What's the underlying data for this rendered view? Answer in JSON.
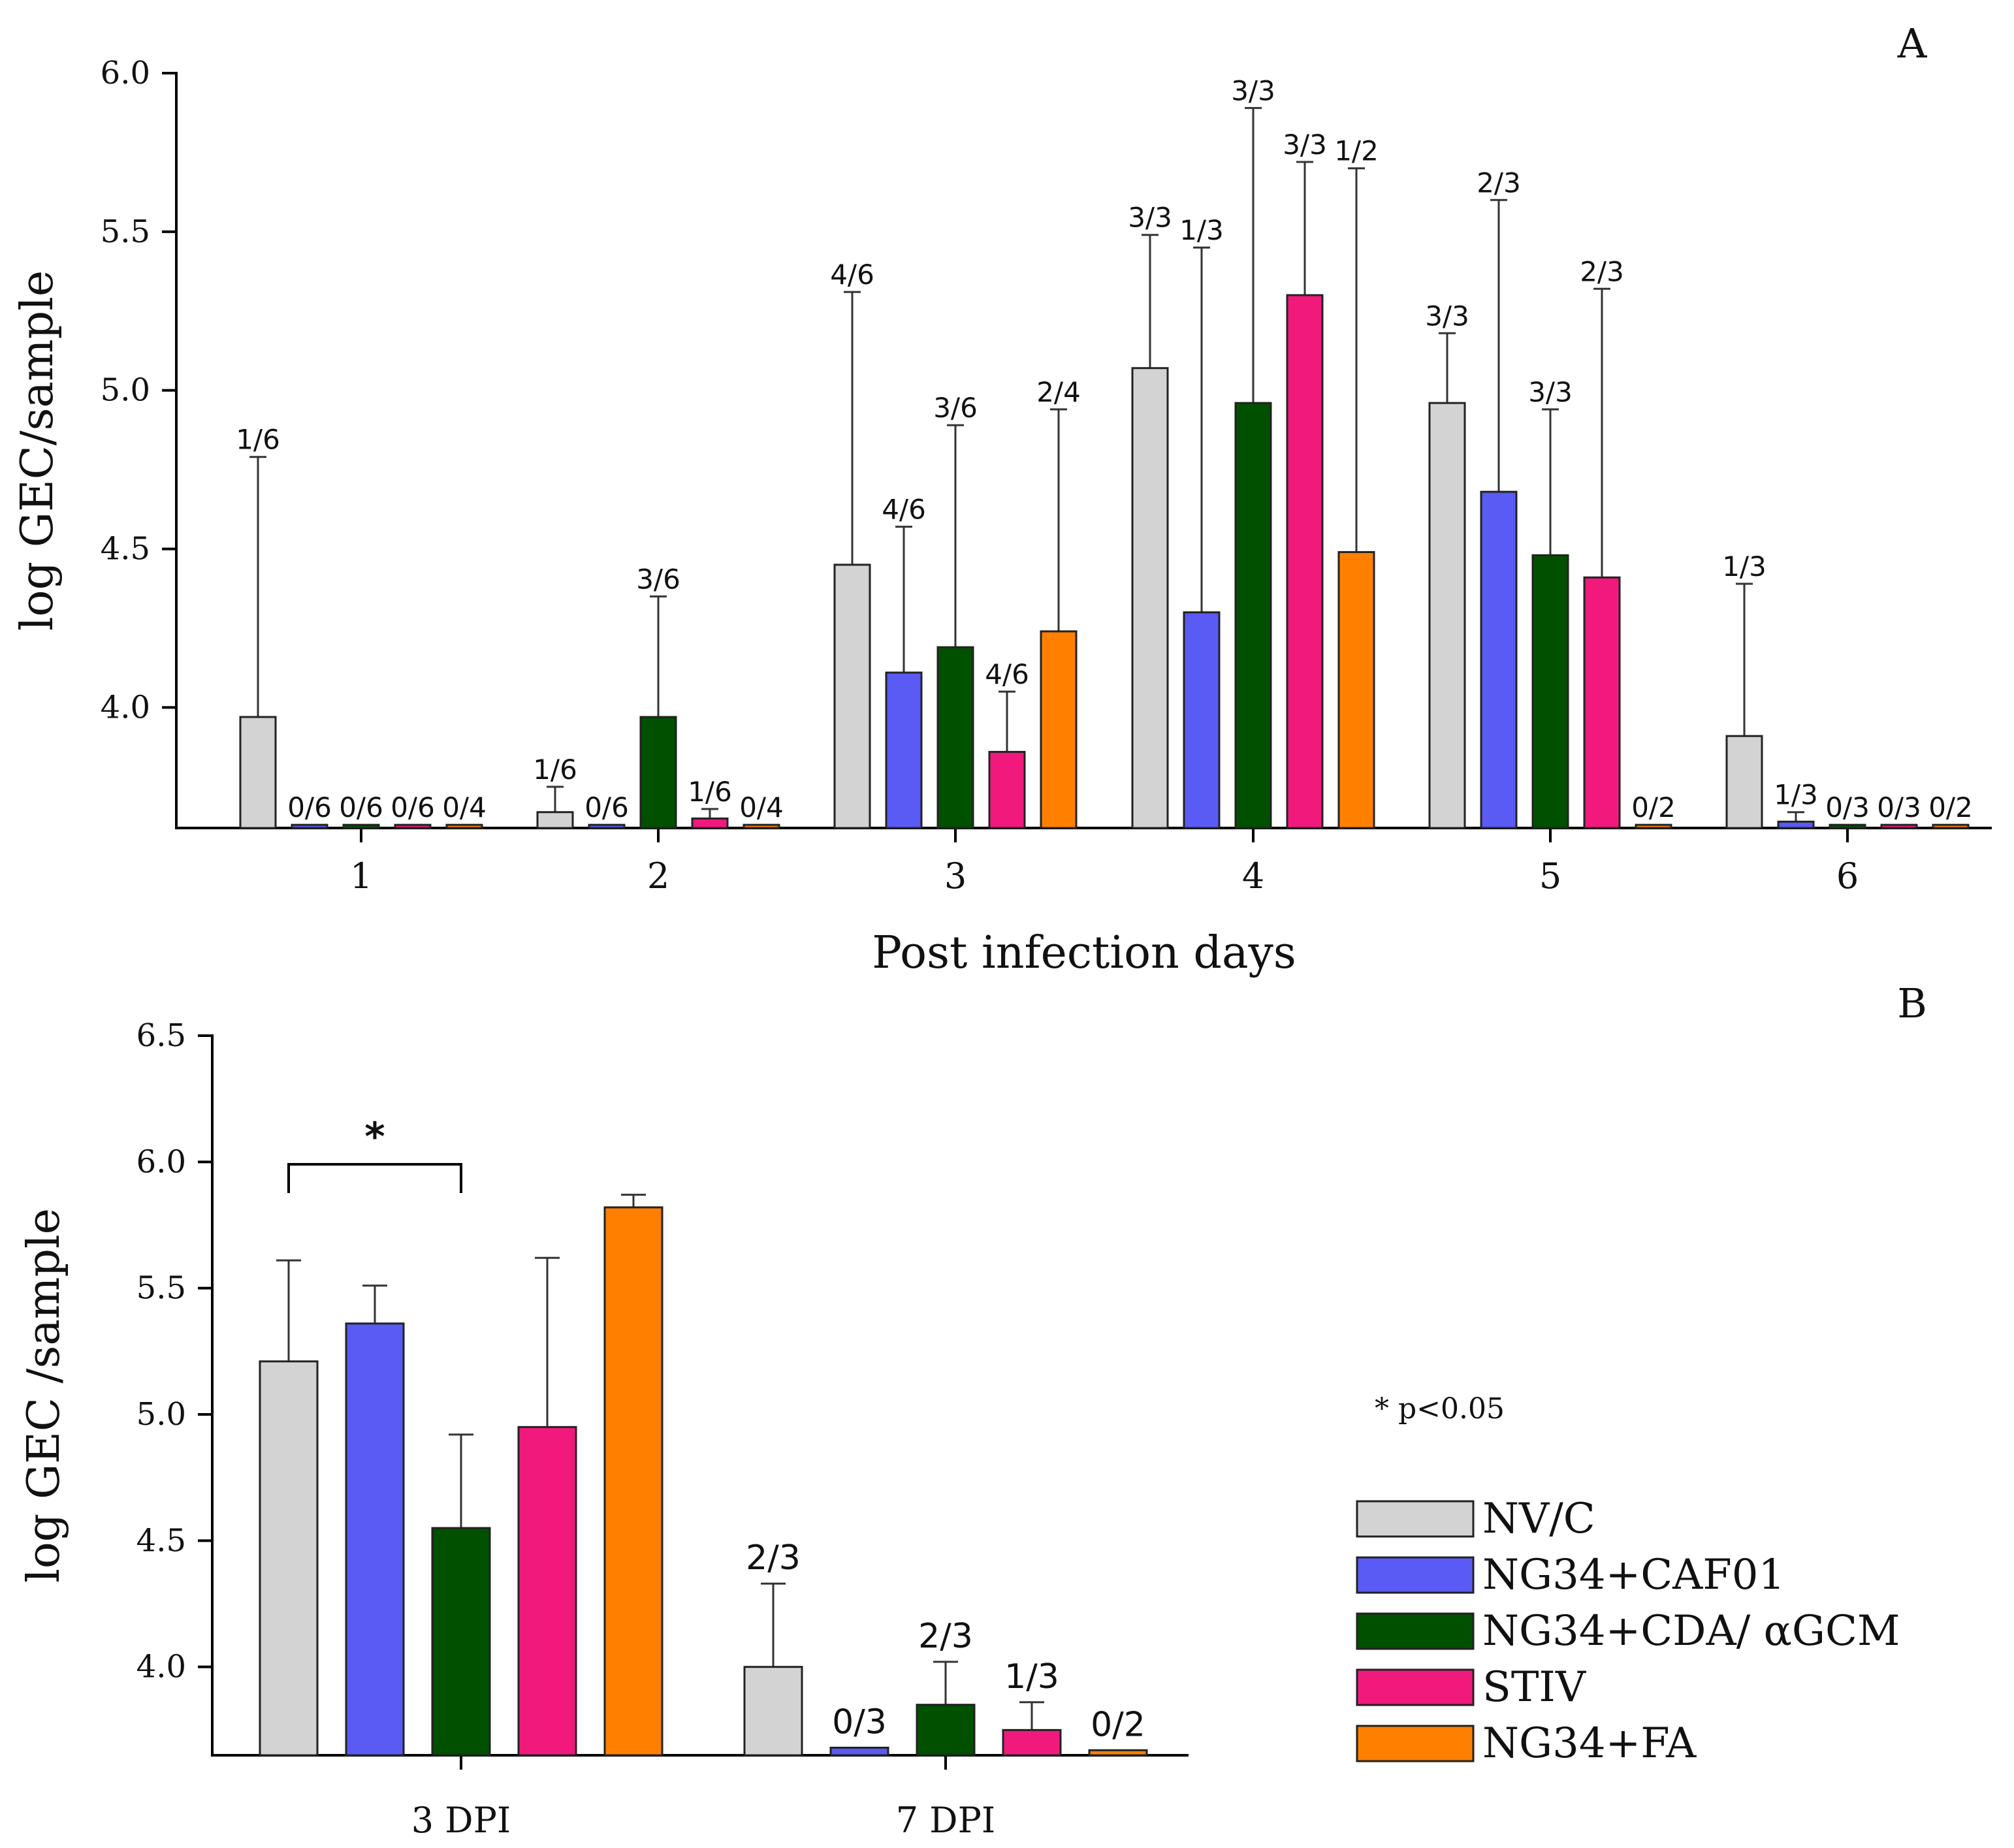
{
  "colors": {
    "NV/C": "#d3d3d3",
    "NG34+CAF01": "#5a5af5",
    "NG34+CDA/ αGCM": "#005000",
    "STIV": "#f2197d",
    "NG34+FA": "#ff8000",
    "axis": "#000000"
  },
  "legend": {
    "items": [
      "NV/C",
      "NG34+CAF01",
      "NG34+CDA/ αGCM",
      "STIV",
      "NG34+FA"
    ],
    "note": "* p<0.05"
  },
  "chart_data": [
    {
      "panel": "A",
      "type": "bar",
      "title": "",
      "xlabel": "Post infection days",
      "ylabel": "log GEC/sample",
      "ylim": [
        3.62,
        6.0
      ],
      "yticks": [
        "4.0",
        "4.5",
        "5.0",
        "5.5",
        "6.0"
      ],
      "ytick_values": [
        4.0,
        4.5,
        5.0,
        5.5,
        6.0
      ],
      "categories": [
        "1",
        "2",
        "3",
        "4",
        "5",
        "6"
      ],
      "series": [
        {
          "name": "NV/C",
          "values": [
            3.97,
            3.67,
            4.45,
            5.07,
            4.96,
            3.91
          ],
          "errors": [
            0.82,
            0.08,
            0.86,
            0.42,
            0.22,
            0.48
          ],
          "labels": [
            "1/6",
            "1/6",
            "4/6",
            "3/3",
            "3/3",
            "1/3"
          ]
        },
        {
          "name": "NG34+CAF01",
          "values": [
            3.63,
            3.63,
            4.11,
            4.3,
            4.68,
            3.64
          ],
          "errors": [
            0.0,
            0.0,
            0.46,
            1.15,
            0.92,
            0.03
          ],
          "labels": [
            "0/6",
            "0/6",
            "4/6",
            "1/3",
            "2/3",
            "1/3"
          ]
        },
        {
          "name": "NG34+CDA/ αGCM",
          "values": [
            3.63,
            3.97,
            4.19,
            4.96,
            4.48,
            3.63
          ],
          "errors": [
            0.0,
            0.38,
            0.7,
            0.93,
            0.46,
            0.0
          ],
          "labels": [
            "0/6",
            "3/6",
            "3/6",
            "3/3",
            "3/3",
            "0/3"
          ]
        },
        {
          "name": "STIV",
          "values": [
            3.63,
            3.65,
            3.86,
            5.3,
            4.41,
            3.63
          ],
          "errors": [
            0.0,
            0.03,
            0.19,
            0.42,
            0.91,
            0.0
          ],
          "labels": [
            "0/6",
            "1/6",
            "4/6",
            "3/3",
            "2/3",
            "0/3"
          ]
        },
        {
          "name": "NG34+FA",
          "values": [
            3.63,
            3.63,
            4.24,
            4.49,
            3.63,
            3.63
          ],
          "errors": [
            0.0,
            0.0,
            0.7,
            1.21,
            0.0,
            0.0
          ],
          "labels": [
            "0/4",
            "0/4",
            "2/4",
            "1/2",
            "0/2",
            "0/2"
          ]
        }
      ]
    },
    {
      "panel": "B",
      "type": "bar",
      "title": "",
      "xlabel": "",
      "ylabel": "log GEC /sample",
      "ylim": [
        3.65,
        6.5
      ],
      "yticks": [
        "4.0",
        "4.5",
        "5.0",
        "5.5",
        "6.0",
        "6.5"
      ],
      "ytick_values": [
        4.0,
        4.5,
        5.0,
        5.5,
        6.0,
        6.5
      ],
      "categories": [
        "3 DPI",
        "7 DPI"
      ],
      "series": [
        {
          "name": "NV/C",
          "values": [
            5.21,
            4.0
          ],
          "errors": [
            0.4,
            0.33
          ],
          "labels": [
            "",
            "2/3"
          ]
        },
        {
          "name": "NG34+CAF01",
          "values": [
            5.36,
            3.68
          ],
          "errors": [
            0.15,
            0.0
          ],
          "labels": [
            "",
            "0/3"
          ]
        },
        {
          "name": "NG34+CDA/ αGCM",
          "values": [
            4.55,
            3.85
          ],
          "errors": [
            0.37,
            0.17
          ],
          "labels": [
            "",
            "2/3"
          ]
        },
        {
          "name": "STIV",
          "values": [
            4.95,
            3.75
          ],
          "errors": [
            0.67,
            0.11
          ],
          "labels": [
            "",
            "1/3"
          ]
        },
        {
          "name": "NG34+FA",
          "values": [
            5.82,
            3.67
          ],
          "errors": [
            0.05,
            0.0
          ],
          "labels": [
            "",
            "0/2"
          ]
        }
      ],
      "significance": {
        "label": "*",
        "between": [
          "NV/C",
          "NG34+CDA/ αGCM"
        ],
        "category": "3 DPI"
      }
    }
  ]
}
